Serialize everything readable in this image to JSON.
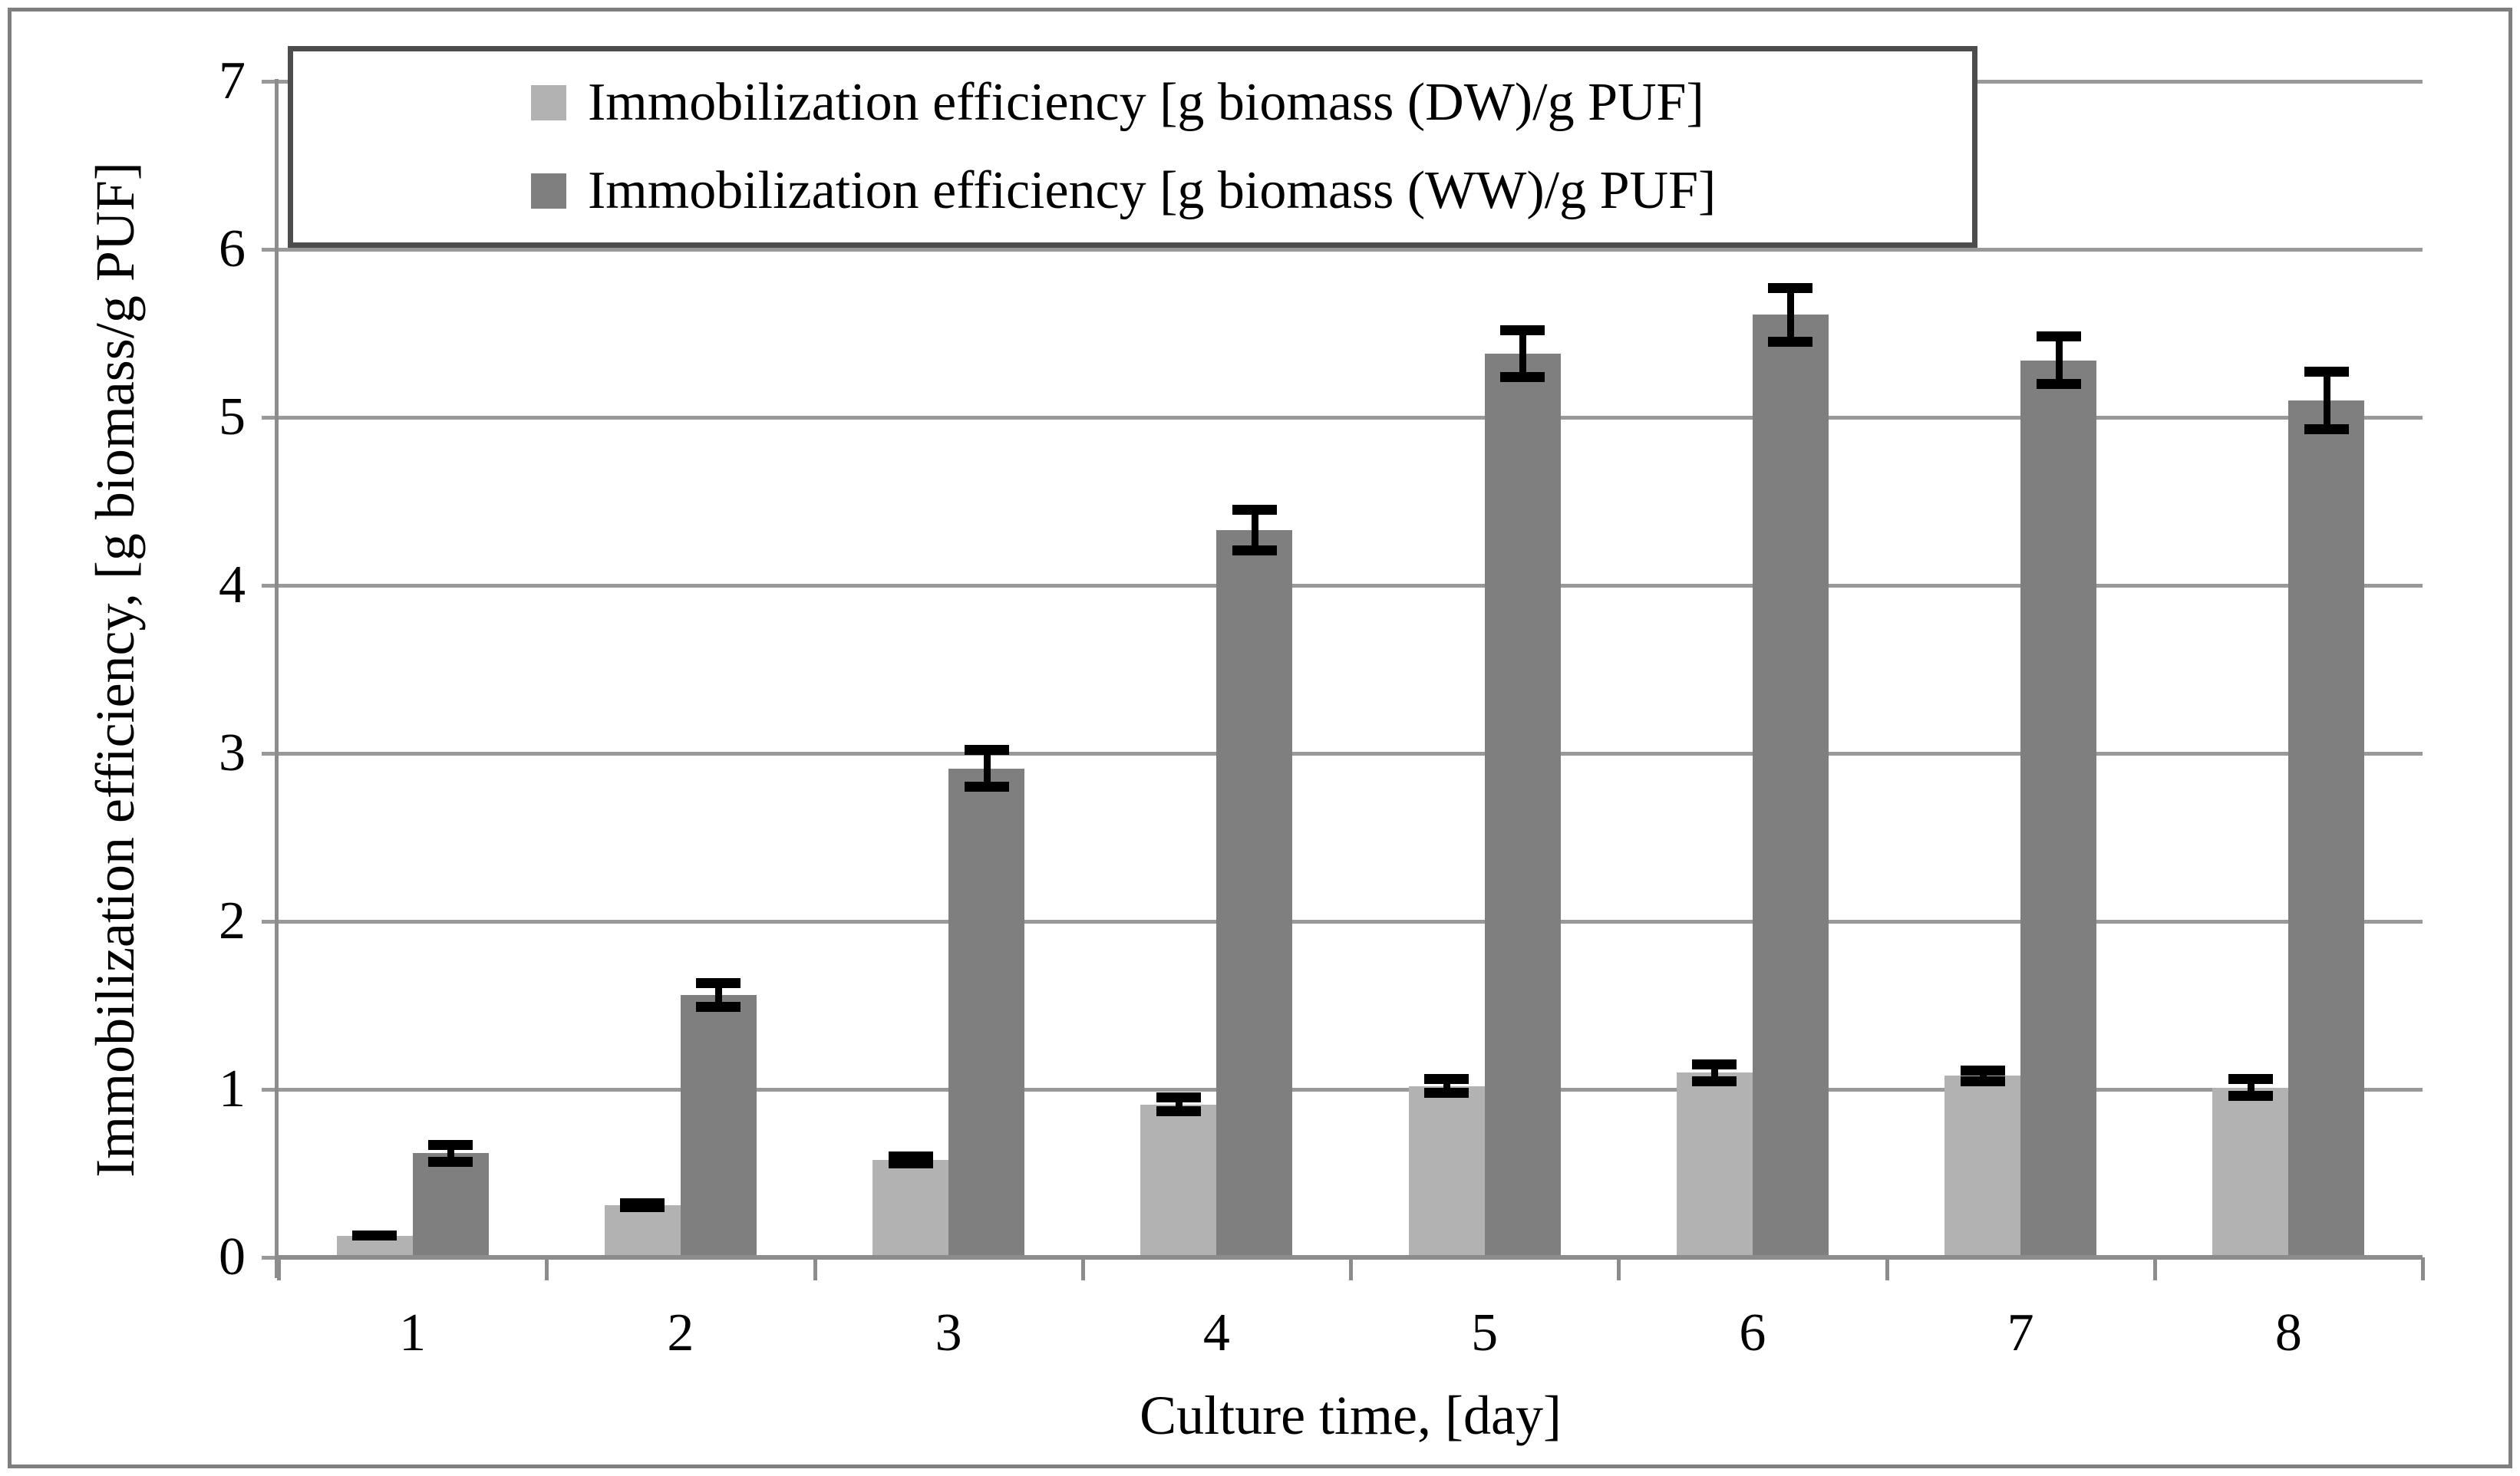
{
  "chart_data": {
    "type": "bar",
    "categories": [
      "1",
      "2",
      "3",
      "4",
      "5",
      "6",
      "7",
      "8"
    ],
    "series": [
      {
        "name": "Immobilization efficiency [g biomass (DW)/g PUF]",
        "color": "#b2b2b2",
        "values": [
          0.13,
          0.31,
          0.58,
          0.91,
          1.02,
          1.1,
          1.08,
          1.01
        ],
        "errors": [
          0.03,
          0.04,
          0.05,
          0.07,
          0.07,
          0.08,
          0.06,
          0.08
        ]
      },
      {
        "name": "Immobilization efficiency [g biomass (WW)/g PUF]",
        "color": "#7f7f7f",
        "values": [
          0.62,
          1.56,
          2.91,
          4.33,
          5.38,
          5.61,
          5.34,
          5.1
        ],
        "errors": [
          0.08,
          0.1,
          0.14,
          0.15,
          0.17,
          0.19,
          0.17,
          0.2
        ]
      }
    ],
    "title": "",
    "xlabel": "Culture time, [day]",
    "ylabel": "Immobilization efficiency, [g biomass/g PUF]",
    "ylim": [
      0,
      7
    ],
    "yticks": [
      0,
      1,
      2,
      3,
      4,
      5,
      6,
      7
    ],
    "grid": true,
    "legend_position": "top",
    "error_bars": true,
    "colors": {
      "gridline": "#999999",
      "axis": "#8c8c8c",
      "error_bar": "#000000",
      "legend_border": "#4d4d4d",
      "figure_border": "#7f7f7f"
    }
  }
}
